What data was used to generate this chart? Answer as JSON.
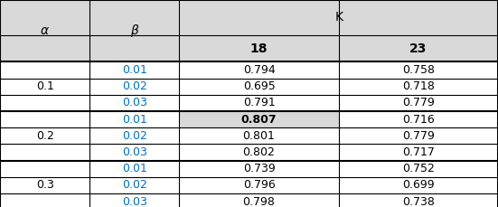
{
  "alpha_values": [
    "0.1",
    "0.2",
    "0.3"
  ],
  "beta_values": [
    "0.01",
    "0.02",
    "0.03"
  ],
  "k_values": [
    "18",
    "23"
  ],
  "data": [
    [
      0.794,
      0.758
    ],
    [
      0.695,
      0.718
    ],
    [
      0.791,
      0.779
    ],
    [
      0.807,
      0.716
    ],
    [
      0.801,
      0.779
    ],
    [
      0.802,
      0.717
    ],
    [
      0.739,
      0.752
    ],
    [
      0.796,
      0.699
    ],
    [
      0.798,
      0.738
    ]
  ],
  "highlight_row": 3,
  "highlight_col": 0,
  "header_bg": "#d9d9d9",
  "data_bg": "#ffffff",
  "highlight_bg": "#d9d9d9",
  "header_text_color": "#000000",
  "beta_text_color": "#0070c0",
  "alpha_text_color": "#000000",
  "data_text_color": "#000000",
  "highlight_text_color": "#000000",
  "border_color": "#000000",
  "italic_font": "italic",
  "bold_font": "bold",
  "font_size": 10,
  "header_font_size": 10
}
